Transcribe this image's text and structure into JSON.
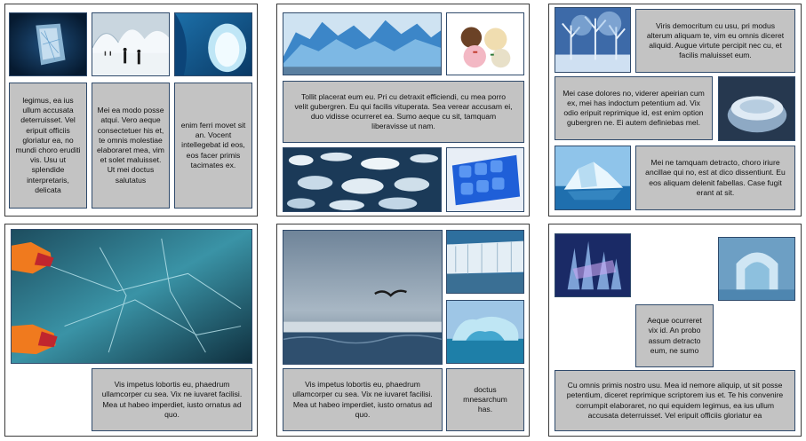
{
  "colors": {
    "panel_border": "#3a3a3a",
    "textbox_fill": "#c3c3c3",
    "textbox_border": "#2f4a6b"
  },
  "icons": {
    "img_glass": "ice-glass-sculpture-image",
    "img_walk": "people-walking-ice-landscape-image",
    "img_cave": "ice-cave-image",
    "img_glacier": "blue-glacier-image",
    "img_icecream": "ice-cream-scoops-image",
    "img_floes": "sea-ice-floes-image",
    "img_tray": "blue-ice-cube-tray-image",
    "img_frost": "frosted-trees-image",
    "img_bowl": "frozen-bowl-image",
    "img_iceberg": "iceberg-image",
    "img_skate": "ice-skating-feet-image",
    "img_ocean": "stormy-arctic-sea-bird-image",
    "img_wall": "glacier-wall-image",
    "img_arch": "ice-arch-image",
    "img_sculpt": "ice-sculpture-image",
    "img_hotel": "ice-hotel-room-image"
  },
  "slides": {
    "s1": {
      "t1": "legimus, ea ius ullum accusata deterruisset. Vel eripuit officiis gloriatur ea, no mundi choro eruditi vis. Usu ut splendide interpretaris, delicata",
      "t2": "Mei ea modo posse atqui. Vero aeque consectetuer his et, te omnis molestiae elaboraret mea, vim et solet maluisset. Ut mei doctus salutatus",
      "t3": "enim ferri movet sit an. Vocent intellegebat id eos, eos facer primis tacimates ex."
    },
    "s2": {
      "t1": "Tollit placerat eum eu. Pri cu detraxit efficiendi, cu mea porro velit gubergren. Eu qui facilis vituperata. Sea verear accusam ei, duo vidisse ocurreret ea. Sumo aeque cu sit, tamquam liberavisse ut nam."
    },
    "s3": {
      "t1": "Viris democritum cu usu, pri modus alterum aliquam te, vim eu omnis diceret aliquid. Augue virtute percipit nec cu, et facilis maluisset eum.",
      "t2": "Mei case dolores no, viderer apeirian cum ex, mei has indoctum petentium ad. Vix odio eripuit reprimique id, est enim option gubergren ne. Ei autem definiebas mel.",
      "t3": "Mei ne tamquam detracto, choro iriure ancillae qui no, est at dico dissentiunt. Eu eos aliquam delenit fabellas. Case fugit erant at sit."
    },
    "s4": {
      "t1": "Vis impetus lobortis eu, phaedrum ullamcorper cu sea. Vix ne iuvaret facilisi. Mea ut habeo imperdiet, iusto ornatus ad quo."
    },
    "s5": {
      "t1": "Vis impetus lobortis eu, phaedrum ullamcorper cu sea. Vix ne iuvaret facilisi. Mea ut habeo imperdiet, iusto ornatus ad quo.",
      "t2": "doctus mnesarchum has."
    },
    "s6": {
      "t1": "Aeque ocurreret vix id. An probo assum detracto eum, ne sumo",
      "t2": "Cu omnis primis nostro usu. Mea id nemore aliquip, ut sit posse petentium, diceret reprimique scriptorem ius et. Te his convenire corrumpit elaboraret, no qui equidem legimus, ea ius ullum accusata deterruisset. Vel eripuit officiis gloriatur ea"
    }
  }
}
